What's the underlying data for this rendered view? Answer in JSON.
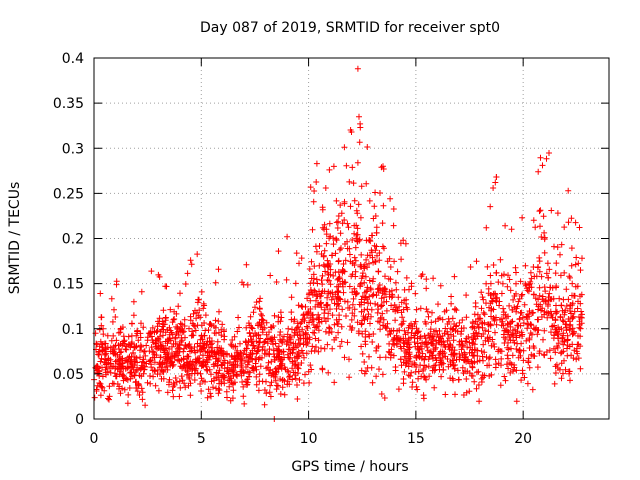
{
  "chart_data": {
    "type": "scatter",
    "title": "Day 087 of 2019, SRMTID for receiver spt0",
    "xlabel": "GPS time / hours",
    "ylabel": "SRMTID / TECUs",
    "xlim": [
      0,
      24
    ],
    "ylim": [
      0,
      0.4
    ],
    "xticks": [
      0,
      5,
      10,
      15,
      20
    ],
    "xtick_labels": [
      "0",
      "5",
      "10",
      "15",
      "20"
    ],
    "yticks": [
      0,
      0.05,
      0.1,
      0.15,
      0.2,
      0.25,
      0.3,
      0.35,
      0.4
    ],
    "ytick_labels": [
      "0",
      "0.05",
      "0.1",
      "0.15",
      "0.2",
      "0.25",
      "0.3",
      "0.35",
      "0.4"
    ],
    "grid": true,
    "marker": "+",
    "color": "#ff0000",
    "x_range_data": [
      0,
      22.75
    ],
    "series": [
      {
        "name": "SRMTID",
        "x": [
          0.0,
          0.2,
          0.4,
          0.6,
          0.8,
          1.0,
          1.2,
          1.4,
          1.6,
          1.8,
          2.0,
          2.2,
          2.4,
          2.6,
          2.8,
          3.0,
          3.2,
          3.4,
          3.6,
          3.8,
          4.0,
          4.2,
          4.4,
          4.6,
          4.8,
          5.0,
          5.2,
          5.4,
          5.6,
          5.8,
          6.0,
          6.2,
          6.4,
          6.6,
          6.8,
          7.0,
          7.2,
          7.4,
          7.6,
          7.8,
          8.0,
          8.2,
          8.4,
          8.6,
          8.8,
          9.0,
          9.2,
          9.4,
          9.6,
          9.8,
          10.0,
          10.2,
          10.4,
          10.6,
          10.8,
          11.0,
          11.2,
          11.4,
          11.6,
          11.8,
          12.0,
          12.2,
          12.4,
          12.6,
          12.8,
          13.0,
          13.2,
          13.4,
          13.6,
          13.8,
          14.0,
          14.2,
          14.4,
          14.6,
          14.8,
          15.0,
          15.2,
          15.4,
          15.6,
          15.8,
          16.0,
          16.2,
          16.4,
          16.6,
          16.8,
          17.0,
          17.2,
          17.4,
          17.6,
          17.8,
          18.0,
          18.2,
          18.4,
          18.6,
          18.8,
          19.0,
          19.2,
          19.4,
          19.6,
          19.8,
          20.0,
          20.2,
          20.4,
          20.6,
          20.8,
          21.0,
          21.2,
          21.4,
          21.6,
          21.8,
          22.0,
          22.2,
          22.4,
          22.6
        ],
        "y": [
          0.063,
          0.06,
          0.065,
          0.062,
          0.066,
          0.07,
          0.064,
          0.062,
          0.061,
          0.066,
          0.063,
          0.07,
          0.068,
          0.072,
          0.076,
          0.074,
          0.075,
          0.072,
          0.078,
          0.08,
          0.074,
          0.072,
          0.07,
          0.078,
          0.082,
          0.08,
          0.076,
          0.074,
          0.07,
          0.065,
          0.062,
          0.058,
          0.056,
          0.062,
          0.066,
          0.066,
          0.07,
          0.074,
          0.078,
          0.082,
          0.075,
          0.072,
          0.068,
          0.065,
          0.064,
          0.07,
          0.074,
          0.08,
          0.086,
          0.094,
          0.11,
          0.125,
          0.13,
          0.138,
          0.14,
          0.14,
          0.142,
          0.146,
          0.148,
          0.15,
          0.152,
          0.16,
          0.145,
          0.13,
          0.14,
          0.15,
          0.14,
          0.13,
          0.118,
          0.11,
          0.104,
          0.098,
          0.09,
          0.085,
          0.082,
          0.08,
          0.078,
          0.075,
          0.072,
          0.075,
          0.078,
          0.076,
          0.078,
          0.08,
          0.078,
          0.076,
          0.072,
          0.075,
          0.08,
          0.086,
          0.09,
          0.094,
          0.1,
          0.11,
          0.12,
          0.11,
          0.1,
          0.096,
          0.094,
          0.098,
          0.1,
          0.106,
          0.11,
          0.12,
          0.13,
          0.14,
          0.132,
          0.12,
          0.1,
          0.094,
          0.1,
          0.11,
          0.115,
          0.12
        ]
      }
    ],
    "peak_points": [
      {
        "x": 12.3,
        "y": 0.388
      },
      {
        "x": 12.35,
        "y": 0.335
      },
      {
        "x": 12.4,
        "y": 0.327
      },
      {
        "x": 12.3,
        "y": 0.284
      },
      {
        "x": 13.4,
        "y": 0.279
      },
      {
        "x": 13.5,
        "y": 0.277
      },
      {
        "x": 20.9,
        "y": 0.281
      },
      {
        "x": 20.7,
        "y": 0.274
      },
      {
        "x": 18.7,
        "y": 0.262
      },
      {
        "x": 18.6,
        "y": 0.256
      },
      {
        "x": 10.1,
        "y": 0.257
      },
      {
        "x": 10.8,
        "y": 0.256
      },
      {
        "x": 22.1,
        "y": 0.253
      },
      {
        "x": 13.1,
        "y": 0.251
      },
      {
        "x": 13.8,
        "y": 0.244
      },
      {
        "x": 9.0,
        "y": 0.202
      },
      {
        "x": 8.6,
        "y": 0.186
      },
      {
        "x": 4.5,
        "y": 0.176
      },
      {
        "x": 7.1,
        "y": 0.171
      },
      {
        "x": 5.8,
        "y": 0.166
      },
      {
        "x": 8.4,
        "y": 0.0
      }
    ]
  }
}
